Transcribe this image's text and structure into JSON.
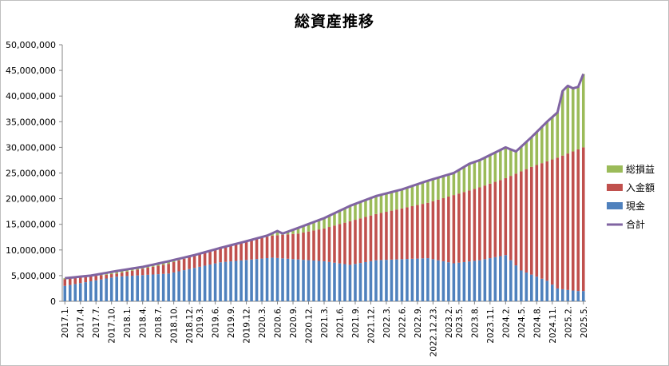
{
  "chart_data": {
    "type": "bar",
    "title": "総資産推移",
    "stacked": true,
    "ylim": [
      0,
      50000000
    ],
    "yticks": [
      "0",
      "5,000,000",
      "10,000,000",
      "15,000,000",
      "20,000,000",
      "25,000,000",
      "30,000,000",
      "35,000,000",
      "40,000,000",
      "45,000,000",
      "50,000,000"
    ],
    "xtick_labels": [
      "2017.1.",
      "2017.4.",
      "2017.7.",
      "2017.10.",
      "2018.1.",
      "2018.4.",
      "2018.7.",
      "2018.10.",
      "2018.12.",
      "2019.3.",
      "2019.6.",
      "2019.9.",
      "2019.12.",
      "2020.3.",
      "2020.6.",
      "2020.9.",
      "2020.12.",
      "2021.3.",
      "2021.6.",
      "2021.9.",
      "2021.12.",
      "2022.3.",
      "2022.6.",
      "2022.9.",
      "2022.12.23.",
      "2023.2.",
      "2023.5.",
      "2023.8.",
      "2023.11.",
      "2024.2.",
      "2024.5.",
      "2024.8.",
      "2024.11.",
      "2025.2.",
      "2025.5."
    ],
    "num_bars": 101,
    "legend_position": "right",
    "colors": {
      "cash": "#4f81bd",
      "deposit": "#c0504d",
      "gain": "#9bbb59",
      "total": "#8064a2"
    },
    "series": [
      {
        "name": "総損益",
        "type": "bar"
      },
      {
        "name": "入金額",
        "type": "bar"
      },
      {
        "name": "現金",
        "type": "bar"
      },
      {
        "name": "合計",
        "type": "line"
      }
    ],
    "anchors": {
      "cash": [
        [
          0,
          3000000
        ],
        [
          10,
          4800000
        ],
        [
          20,
          5400000
        ],
        [
          30,
          7600000
        ],
        [
          40,
          8500000
        ],
        [
          50,
          7800000
        ],
        [
          55,
          7100000
        ],
        [
          60,
          8000000
        ],
        [
          70,
          8400000
        ],
        [
          75,
          7400000
        ],
        [
          80,
          8000000
        ],
        [
          85,
          9000000
        ],
        [
          88,
          6000000
        ],
        [
          93,
          4000000
        ],
        [
          95,
          2500000
        ],
        [
          97,
          2200000
        ],
        [
          99,
          2000000
        ],
        [
          100,
          2000000
        ]
      ],
      "deposit": [
        [
          0,
          4300000
        ],
        [
          10,
          5400000
        ],
        [
          20,
          7300000
        ],
        [
          30,
          10600000
        ],
        [
          40,
          12800000
        ],
        [
          45,
          13200000
        ],
        [
          50,
          14200000
        ],
        [
          55,
          15600000
        ],
        [
          60,
          17000000
        ],
        [
          70,
          19200000
        ],
        [
          80,
          22200000
        ],
        [
          85,
          24000000
        ],
        [
          90,
          26200000
        ],
        [
          95,
          28000000
        ],
        [
          100,
          30000000
        ]
      ],
      "total": [
        [
          0,
          4500000
        ],
        [
          5,
          5000000
        ],
        [
          10,
          5900000
        ],
        [
          15,
          6700000
        ],
        [
          20,
          7800000
        ],
        [
          25,
          9000000
        ],
        [
          30,
          10400000
        ],
        [
          35,
          11700000
        ],
        [
          39,
          12800000
        ],
        [
          41,
          13700000
        ],
        [
          42,
          13200000
        ],
        [
          45,
          14300000
        ],
        [
          50,
          16200000
        ],
        [
          55,
          18600000
        ],
        [
          60,
          20500000
        ],
        [
          65,
          21800000
        ],
        [
          70,
          23500000
        ],
        [
          75,
          25000000
        ],
        [
          78,
          26800000
        ],
        [
          80,
          27500000
        ],
        [
          85,
          30000000
        ],
        [
          87,
          29200000
        ],
        [
          90,
          32000000
        ],
        [
          93,
          35000000
        ],
        [
          95,
          36800000
        ],
        [
          96,
          41000000
        ],
        [
          97,
          42000000
        ],
        [
          98,
          41500000
        ],
        [
          99,
          41800000
        ],
        [
          100,
          44300000
        ]
      ]
    }
  },
  "legend": [
    {
      "label": "総損益",
      "color": "#9bbb59",
      "kind": "box"
    },
    {
      "label": "入金額",
      "color": "#c0504d",
      "kind": "box"
    },
    {
      "label": "現金",
      "color": "#4f81bd",
      "kind": "box"
    },
    {
      "label": "合計",
      "color": "#8064a2",
      "kind": "line"
    }
  ]
}
